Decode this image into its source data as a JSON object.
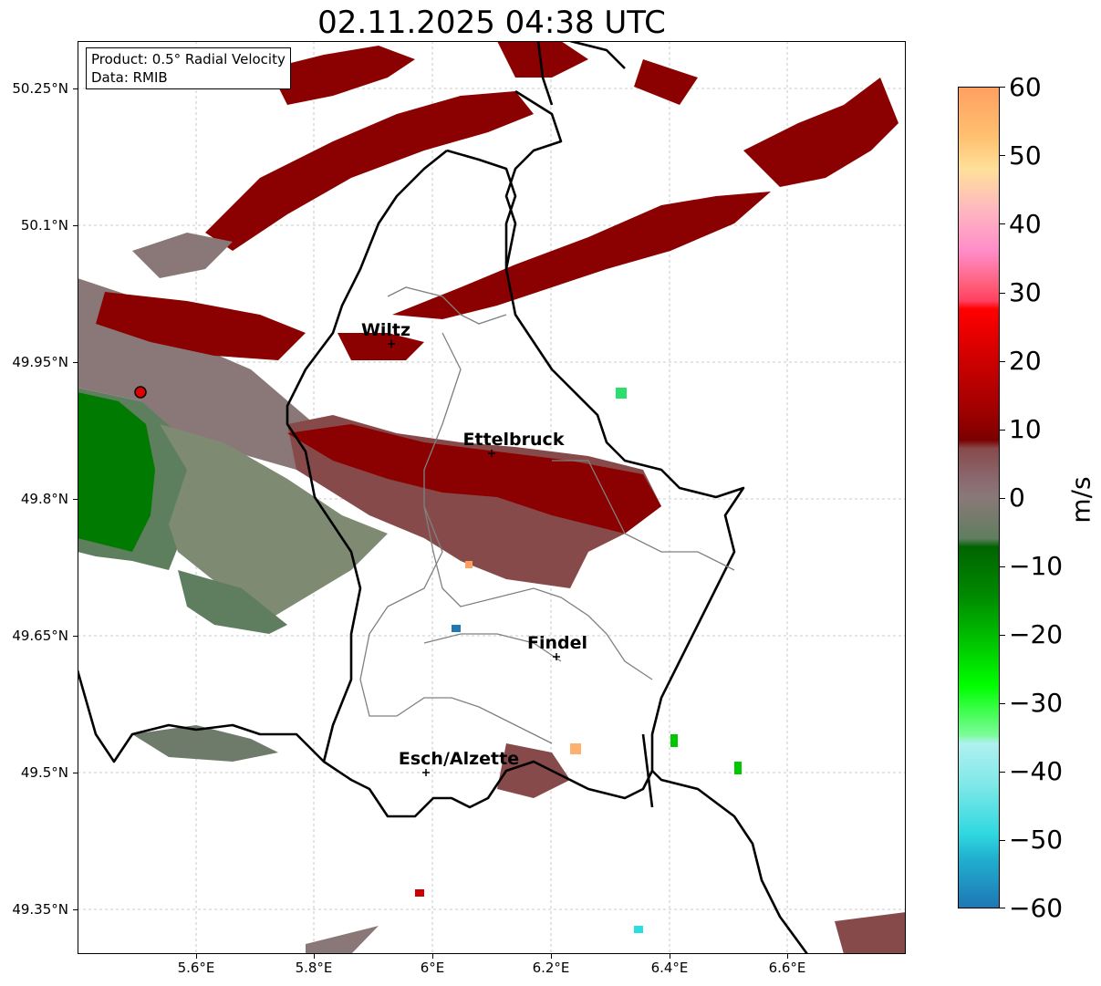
{
  "title": "02.11.2025 04:38 UTC",
  "info_box": {
    "product": "Product: 0.5° Radial Velocity",
    "data": "Data: RMIB"
  },
  "map": {
    "lon_range": [
      5.4,
      6.8
    ],
    "lat_range": [
      49.3,
      50.3
    ],
    "lat_ticks": [
      {
        "value": 50.25,
        "label": "50.25°N"
      },
      {
        "value": 50.1,
        "label": "50.1°N"
      },
      {
        "value": 49.95,
        "label": "49.95°N"
      },
      {
        "value": 49.8,
        "label": "49.8°N"
      },
      {
        "value": 49.65,
        "label": "49.65°N"
      },
      {
        "value": 49.5,
        "label": "49.5°N"
      },
      {
        "value": 49.35,
        "label": "49.35°N"
      }
    ],
    "lon_ticks": [
      {
        "value": 5.6,
        "label": "5.6°E"
      },
      {
        "value": 5.8,
        "label": "5.8°E"
      },
      {
        "value": 6.0,
        "label": "6°E"
      },
      {
        "value": 6.2,
        "label": "6.2°E"
      },
      {
        "value": 6.4,
        "label": "6.4°E"
      },
      {
        "value": 6.6,
        "label": "6.6°E"
      }
    ],
    "radar_site": {
      "lon": 5.505,
      "lat": 49.915
    },
    "cities": [
      {
        "name": "Wiltz",
        "lon": 5.935,
        "lat": 49.966
      },
      {
        "name": "Ettelbruck",
        "lon": 6.104,
        "lat": 49.847
      },
      {
        "name": "Findel",
        "lon": 6.211,
        "lat": 49.627
      },
      {
        "name": "Esch/Alzette",
        "lon": 5.981,
        "lat": 49.496
      }
    ],
    "colors": {
      "inbound_strong": "#007a00",
      "inbound_weak": "#5a7e5a",
      "near_zero": "#8a7878",
      "outbound_weak": "#874a4a",
      "outbound_strong": "#8b0000"
    }
  },
  "colorbar": {
    "unit": "m/s",
    "min": -60,
    "max": 60,
    "tick_labels": [
      "60",
      "50",
      "40",
      "30",
      "20",
      "10",
      "0",
      "−10",
      "−20",
      "−30",
      "−40",
      "−50",
      "−60"
    ]
  }
}
